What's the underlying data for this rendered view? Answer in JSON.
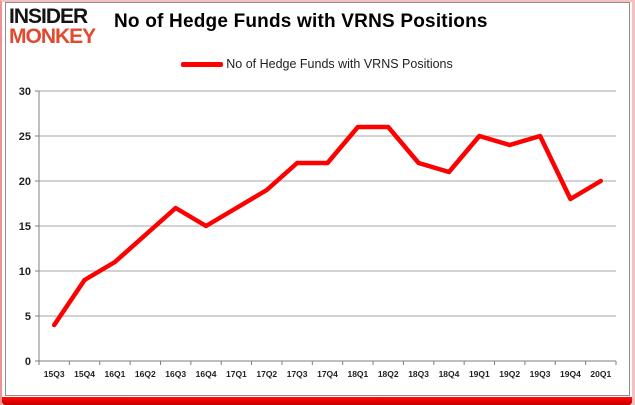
{
  "branding": {
    "logo_line1": "INSIDER",
    "logo_line2": "MONKEY",
    "logo_color_top": "#141414",
    "logo_color_bottom": "#e2492e"
  },
  "header": {
    "title": "No of Hedge Funds with VRNS Positions"
  },
  "legend": {
    "label": "No of Hedge Funds with VRNS Positions",
    "swatch_color": "#fe0000"
  },
  "chart_data": {
    "type": "line",
    "title": "No of Hedge Funds with VRNS Positions",
    "categories": [
      "15Q3",
      "15Q4",
      "16Q1",
      "16Q2",
      "16Q3",
      "16Q4",
      "17Q1",
      "17Q2",
      "17Q3",
      "17Q4",
      "18Q1",
      "18Q2",
      "18Q3",
      "18Q4",
      "19Q1",
      "19Q2",
      "19Q3",
      "19Q4",
      "20Q1"
    ],
    "series": [
      {
        "name": "No of Hedge Funds with VRNS Positions",
        "values": [
          4,
          9,
          11,
          14,
          17,
          15,
          17,
          19,
          22,
          22,
          26,
          26,
          22,
          21,
          25,
          24,
          25,
          18,
          20
        ]
      }
    ],
    "ylim": [
      0,
      30
    ],
    "yticks": [
      0,
      5,
      10,
      15,
      20,
      25,
      30
    ],
    "grid": true,
    "legend_position": "top-center",
    "line_color": "#fe0000",
    "gridline_color": "#a6a6a6",
    "axis_color": "#7f7f7f"
  },
  "colors": {
    "accent_red": "#fe0000",
    "bottom_bar": "#e40000",
    "frame_gray": "#8e8e8e",
    "border_pink": "#f6c0c0"
  }
}
